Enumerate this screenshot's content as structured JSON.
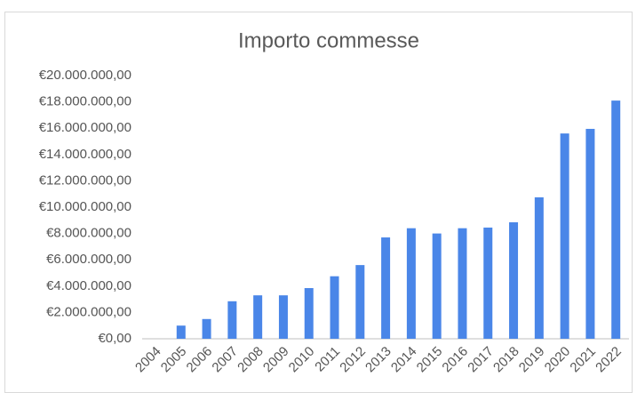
{
  "chart_data": {
    "type": "bar",
    "title": "Importo commesse",
    "categories": [
      "2004",
      "2005",
      "2006",
      "2007",
      "2008",
      "2009",
      "2010",
      "2011",
      "2012",
      "2013",
      "2014",
      "2015",
      "2016",
      "2017",
      "2018",
      "2019",
      "2020",
      "2021",
      "2022"
    ],
    "values": [
      0,
      1000000,
      1500000,
      2850000,
      3300000,
      3300000,
      3850000,
      4750000,
      5600000,
      7700000,
      8400000,
      8000000,
      8400000,
      8450000,
      8850000,
      10750000,
      15600000,
      15950000,
      18100000
    ],
    "color": "#4a86e8",
    "ylim": [
      0,
      20000000
    ],
    "yticks": [
      {
        "value": 0,
        "label": "€0,00"
      },
      {
        "value": 2000000,
        "label": "€2.000.000,00"
      },
      {
        "value": 4000000,
        "label": "€4.000.000,00"
      },
      {
        "value": 6000000,
        "label": "€6.000.000,00"
      },
      {
        "value": 8000000,
        "label": "€8.000.000,00"
      },
      {
        "value": 10000000,
        "label": "€10.000.000,00"
      },
      {
        "value": 12000000,
        "label": "€12.000.000,00"
      },
      {
        "value": 14000000,
        "label": "€14.000.000,00"
      },
      {
        "value": 16000000,
        "label": "€16.000.000,00"
      },
      {
        "value": 18000000,
        "label": "€18.000.000,00"
      },
      {
        "value": 20000000,
        "label": "€20.000.000,00"
      }
    ],
    "grid": false
  }
}
